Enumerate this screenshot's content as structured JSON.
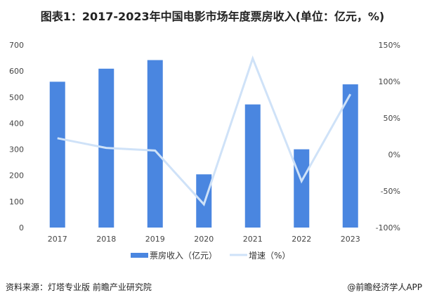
{
  "title": "图表1：2017-2023年中国电影市场年度票房收入(单位：亿元，%)",
  "source": "资料来源：灯塔专业版 前瞻产业研究院",
  "brand": "@前瞻经济学人APP",
  "chart_data": {
    "type": "bar",
    "categories": [
      "2017",
      "2018",
      "2019",
      "2020",
      "2021",
      "2022",
      "2023"
    ],
    "series": [
      {
        "name": "票房收入（亿元）",
        "type": "bar",
        "axis": "left",
        "color": "#4a86e0",
        "values": [
          559,
          609,
          642,
          204,
          472,
          300,
          549
        ]
      },
      {
        "name": "增速（%）",
        "type": "line",
        "axis": "right",
        "color": "#cfe2f8",
        "values": [
          22.3,
          9.0,
          5.4,
          -68.2,
          131.5,
          -36.4,
          82.6
        ]
      }
    ],
    "ylim_left": [
      0,
      700
    ],
    "yticks_left": [
      "0",
      "100",
      "200",
      "300",
      "400",
      "500",
      "600",
      "700"
    ],
    "ylim_right": [
      -100,
      150
    ],
    "yticks_right": [
      "-100%",
      "-50%",
      "0%",
      "50%",
      "100%",
      "150%"
    ],
    "grid": false,
    "legend": "bottom"
  }
}
